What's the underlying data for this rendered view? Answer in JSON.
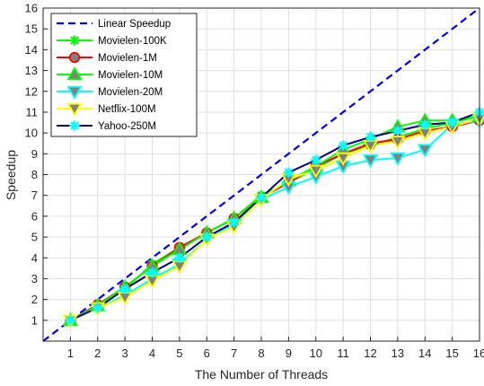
{
  "chart_data": {
    "type": "line",
    "title": "",
    "xlabel": "The Number of Threads",
    "ylabel": "Speedup",
    "xlim": [
      0,
      16
    ],
    "ylim": [
      0,
      16
    ],
    "xticks": [
      1,
      2,
      3,
      4,
      5,
      6,
      7,
      8,
      9,
      10,
      11,
      12,
      13,
      14,
      15,
      16
    ],
    "yticks": [
      1,
      2,
      3,
      4,
      5,
      6,
      7,
      8,
      9,
      10,
      11,
      12,
      13,
      14,
      15,
      16
    ],
    "grid": true,
    "legend_position": "top-left",
    "x": [
      1,
      2,
      3,
      4,
      5,
      6,
      7,
      8,
      9,
      10,
      11,
      12,
      13,
      14,
      15,
      16
    ],
    "series": [
      {
        "name": "Linear Speedup",
        "color": "#0000ff",
        "line_style": "dashed",
        "marker": "none",
        "x": [
          0,
          16
        ],
        "values": [
          0,
          16
        ]
      },
      {
        "name": "Movielen-100K",
        "color": "#00ff00",
        "line_style": "solid",
        "marker": "asterisk",
        "values": [
          1.0,
          1.75,
          2.5,
          3.7,
          4.5,
          5.2,
          5.9,
          7.0,
          7.6,
          8.3,
          9.0,
          9.4,
          9.8,
          10.2,
          10.5,
          10.8
        ]
      },
      {
        "name": "Movielen-1M",
        "color": "#ff0000",
        "line_style": "solid",
        "marker": "circle",
        "values": [
          1.0,
          1.75,
          2.6,
          3.6,
          4.5,
          5.2,
          5.9,
          6.9,
          7.6,
          8.4,
          9.0,
          9.5,
          9.7,
          10.1,
          10.3,
          10.6
        ]
      },
      {
        "name": "Movielen-10M",
        "color": "#00ff00",
        "line_style": "solid",
        "marker": "triangle-up",
        "values": [
          1.0,
          1.7,
          2.6,
          3.6,
          4.4,
          5.2,
          5.9,
          6.9,
          7.7,
          8.4,
          9.2,
          9.7,
          10.3,
          10.6,
          10.6,
          10.8
        ]
      },
      {
        "name": "Movielen-20M",
        "color": "#00ffff",
        "line_style": "solid",
        "marker": "triangle-down",
        "values": [
          1.0,
          1.6,
          2.2,
          3.0,
          3.7,
          4.9,
          5.6,
          6.8,
          7.4,
          7.9,
          8.4,
          8.7,
          8.8,
          9.2,
          10.4,
          10.6
        ]
      },
      {
        "name": "Netflix-100M",
        "color": "#ffff00",
        "line_style": "solid",
        "marker": "triangle-down",
        "values": [
          1.0,
          1.6,
          2.1,
          2.9,
          3.6,
          4.9,
          5.5,
          6.8,
          7.8,
          8.2,
          8.8,
          9.4,
          9.6,
          10.0,
          10.3,
          10.7
        ]
      },
      {
        "name": "Yahoo-250M",
        "color": "#000080",
        "line_style": "solid",
        "marker": "asterisk",
        "marker_color": "#00ffff",
        "values": [
          1.0,
          1.6,
          2.5,
          3.3,
          4.0,
          5.0,
          5.7,
          6.9,
          8.1,
          8.7,
          9.4,
          9.8,
          10.1,
          10.4,
          10.5,
          11.0
        ]
      }
    ]
  }
}
